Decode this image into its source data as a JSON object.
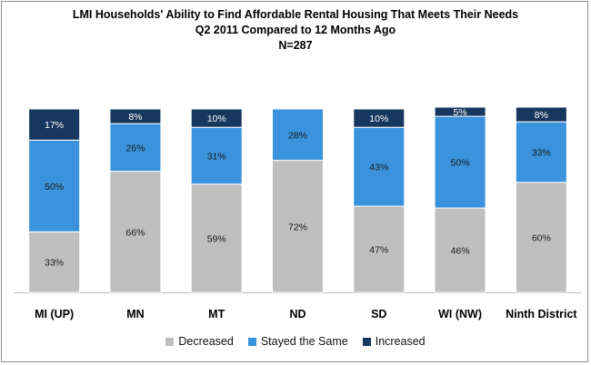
{
  "chart_data": {
    "type": "bar",
    "stacked": true,
    "title": "LMI Households' Ability to Find Affordable Rental Housing That Meets Their Needs",
    "subtitle": "Q2 2011 Compared to 12 Months Ago",
    "note": "N=287",
    "categories": [
      "MI (UP)",
      "MN",
      "MT",
      "ND",
      "SD",
      "WI (NW)",
      "Ninth District"
    ],
    "series": [
      {
        "name": "Decreased",
        "color": "#bfbfbf",
        "values": [
          33,
          66,
          59,
          72,
          47,
          46,
          60
        ],
        "labels": [
          "33%",
          "66%",
          "59%",
          "72%",
          "47%",
          "46%",
          "60%"
        ]
      },
      {
        "name": "Stayed the Same",
        "color": "#3a93dc",
        "values": [
          50,
          26,
          31,
          28,
          43,
          50,
          33
        ],
        "labels": [
          "50%",
          "26%",
          "31%",
          "28%",
          "43%",
          "50%",
          "33%"
        ]
      },
      {
        "name": "Increased",
        "color": "#17375e",
        "values": [
          17,
          8,
          10,
          0,
          10,
          5,
          8
        ],
        "labels": [
          "17%",
          "8%",
          "10%",
          "",
          "10%",
          "5%",
          "8%"
        ]
      }
    ],
    "ylim": [
      0,
      100
    ],
    "grid": false,
    "legend_position": "bottom"
  }
}
